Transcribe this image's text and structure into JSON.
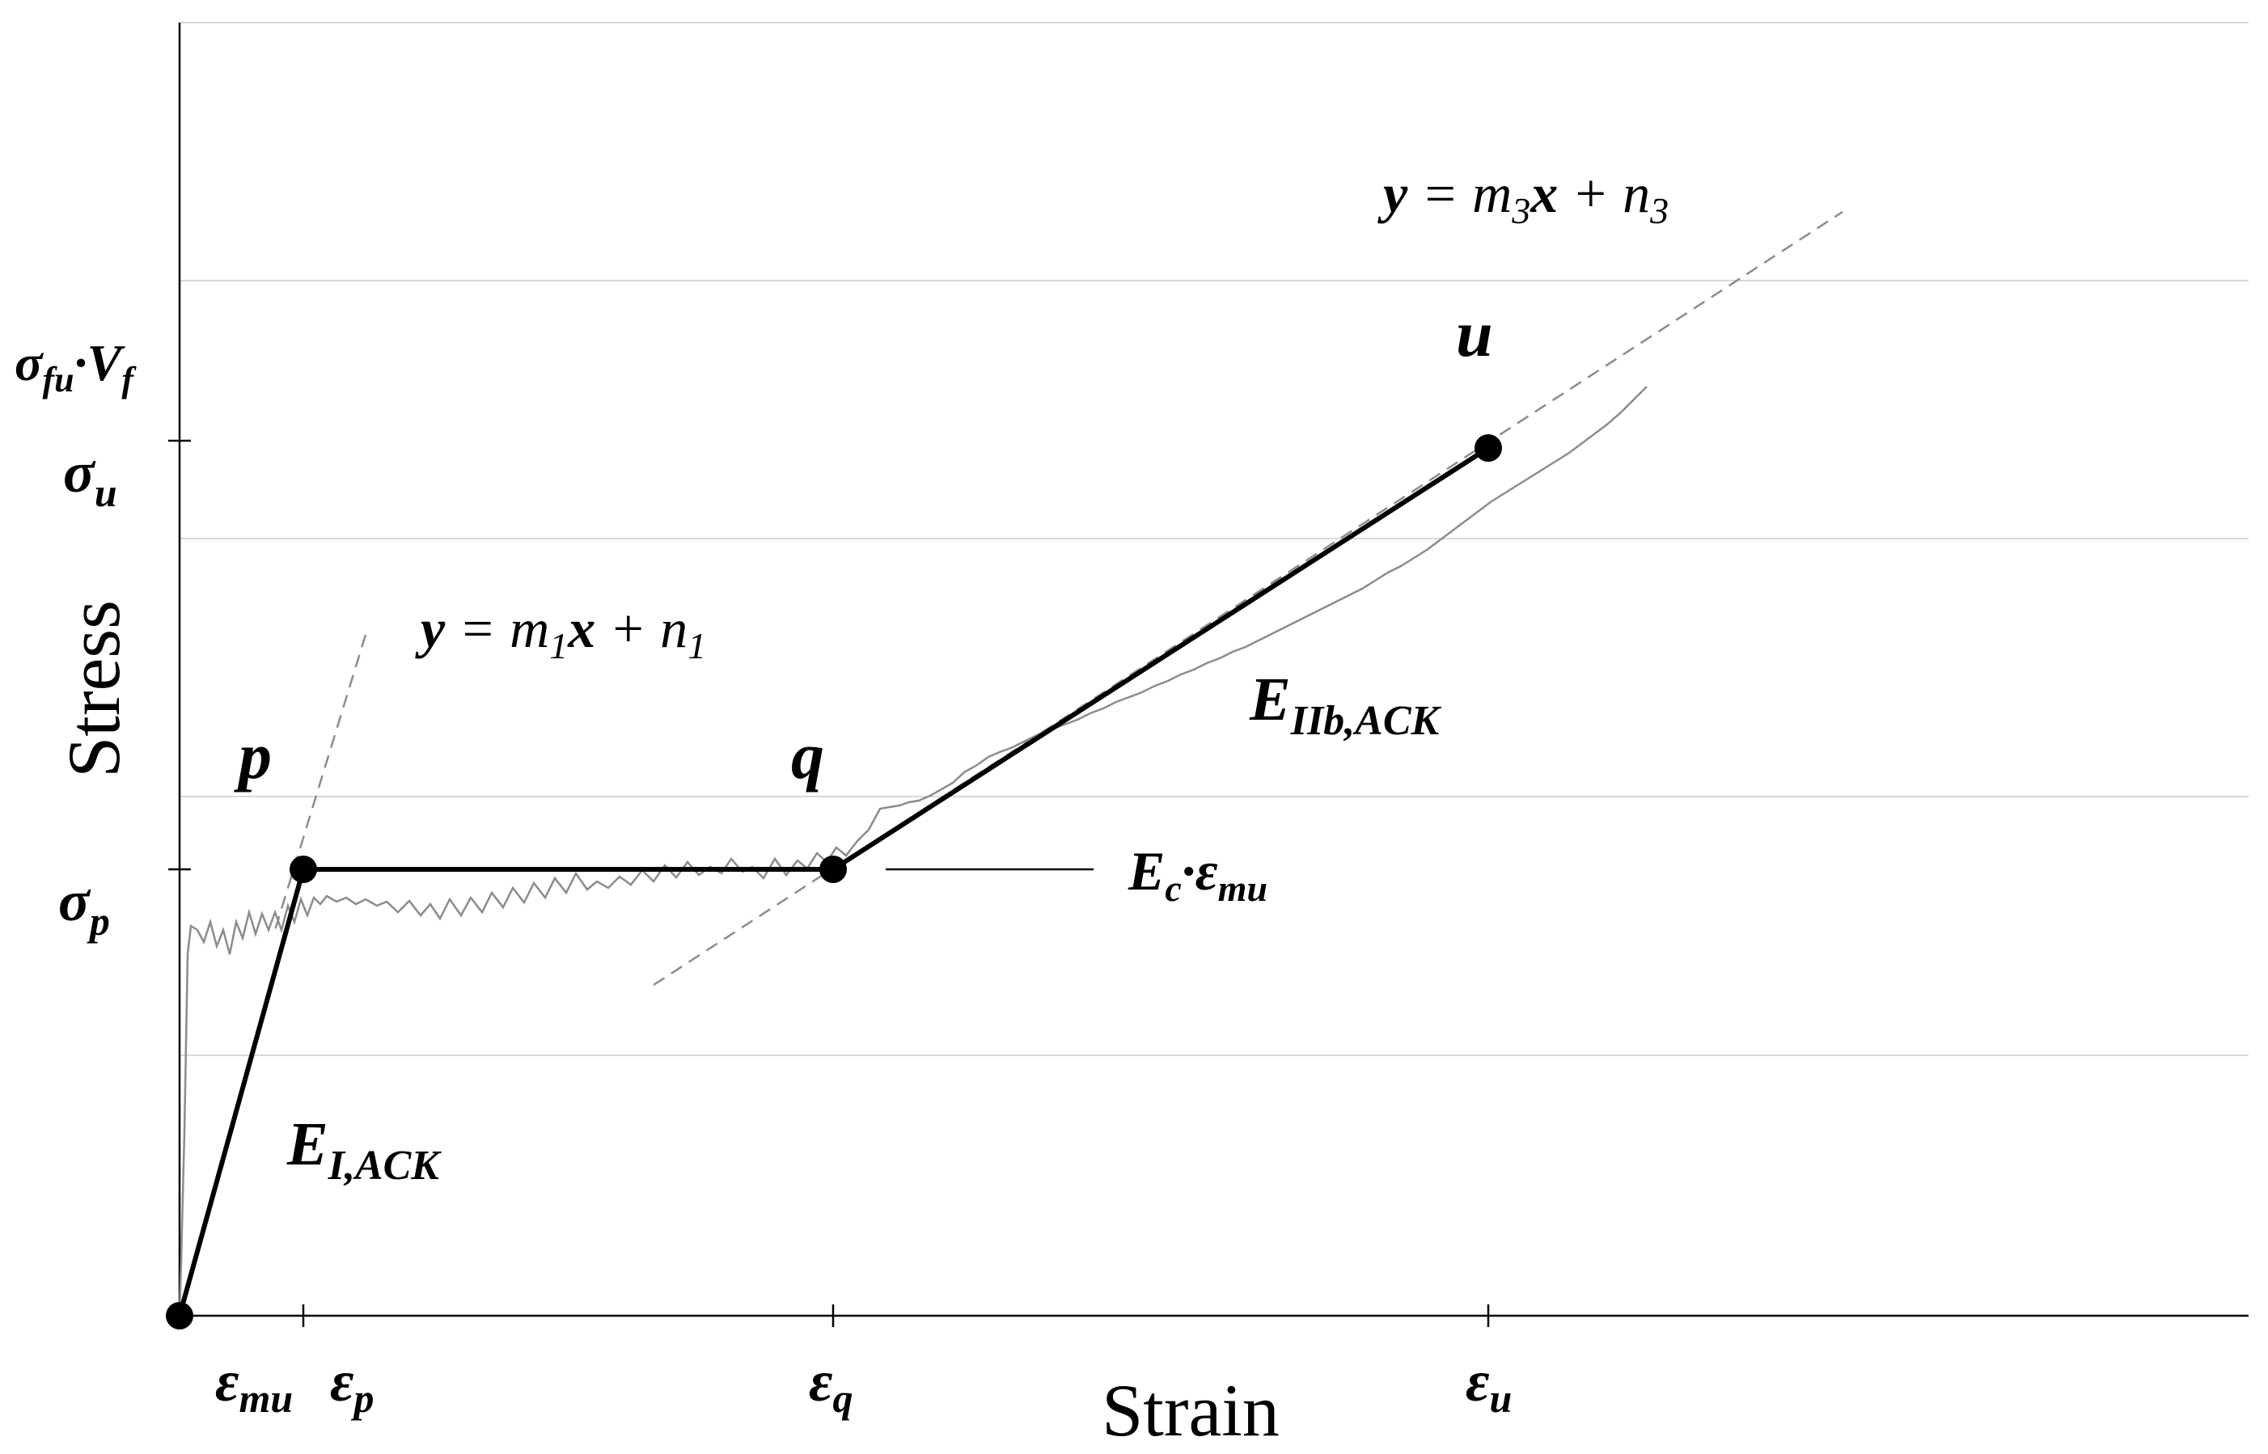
{
  "axes": {
    "x_label": "Strain",
    "y_label": "Stress"
  },
  "y_ticks": {
    "sigma_fu": "σ",
    "sigma_fu_sub": "fu",
    "v_dot": "·V",
    "v_sub": "f",
    "sigma_u": "σ",
    "sigma_u_sub": "u",
    "sigma_p": "σ",
    "sigma_p_sub": "p"
  },
  "x_ticks": {
    "eps_mu": "ε",
    "eps_mu_sub": "mu",
    "eps_p": "ε",
    "eps_p_sub": "p",
    "eps_q": "ε",
    "eps_q_sub": "q",
    "eps_u": "ε",
    "eps_u_sub": "u"
  },
  "points": {
    "p": "p",
    "q": "q",
    "u": "u"
  },
  "labels": {
    "e1": "E",
    "e1_sub": "I,ACK",
    "e2": "E",
    "e2_sub": "IIb,ACK",
    "ec": "E",
    "ec_sub": "c",
    "ec_dot": "·ε",
    "ec_sub2": "mu"
  },
  "equations": {
    "eq1": {
      "y": "y",
      "eq": " = m",
      "m_sub": "1",
      "x": "x",
      "plus": " + n",
      "n_sub": "1"
    },
    "eq3": {
      "y": "y",
      "eq": " = m",
      "m_sub": "3",
      "x": "x",
      "plus": " + n",
      "n_sub": "3"
    }
  },
  "colors": {
    "model_line": "#000000",
    "experimental_curve": "#8c8c8c",
    "fit_line": "#8c8c8c",
    "grid": "#d9d9d9"
  }
}
